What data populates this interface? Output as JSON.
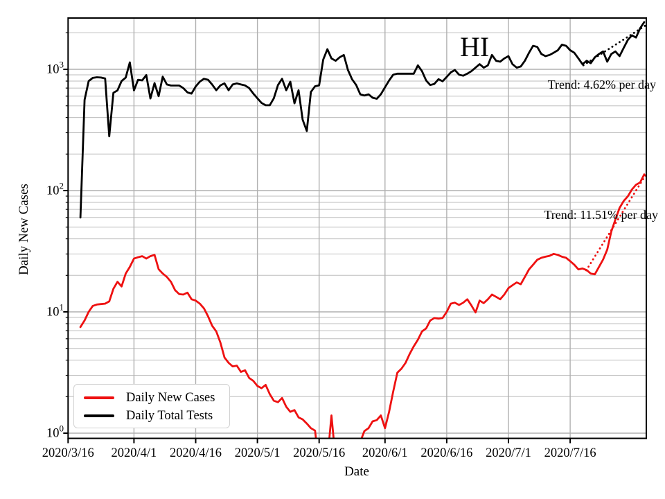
{
  "figure": {
    "background": "#ffffff",
    "grid_color": "#b0b0b0",
    "spine_color": "#000000"
  },
  "chart_data": {
    "type": "line",
    "yscale": "log",
    "title": "HI",
    "xlabel": "Date",
    "ylabel": "Daily New Cases",
    "x_tick_labels": [
      "2020/3/16",
      "2020/4/1",
      "2020/4/16",
      "2020/5/1",
      "2020/5/16",
      "2020/6/1",
      "2020/6/16",
      "2020/7/1",
      "2020/7/16"
    ],
    "x_tick_days": [
      0,
      16,
      31,
      46,
      61,
      77,
      92,
      107,
      122
    ],
    "y_tick_exponents": [
      0,
      1,
      2,
      3
    ],
    "ylim": [
      0.9,
      2650
    ],
    "xlim_days": [
      0,
      140.5
    ],
    "grid": "both",
    "legend_position": "lower-left",
    "start_date": "2020/3/19",
    "start_day_offset": 3,
    "series": [
      {
        "name": "Daily New Cases",
        "color": "#ee1111",
        "values": [
          7.5,
          8.5,
          10,
          11.2,
          11.5,
          11.6,
          11.7,
          12.2,
          15.5,
          17.7,
          16.2,
          20.7,
          23.5,
          27.5,
          28.2,
          28.8,
          27.5,
          28.8,
          29.5,
          22.5,
          20.7,
          19.4,
          17.7,
          15.1,
          14,
          13.9,
          14.4,
          12.7,
          12.4,
          11.7,
          10.7,
          9.2,
          7.7,
          6.9,
          5.6,
          4.2,
          3.8,
          3.55,
          3.6,
          3.2,
          3.3,
          2.85,
          2.7,
          2.45,
          2.35,
          2.5,
          2.1,
          1.85,
          1.8,
          1.95,
          1.65,
          1.5,
          1.55,
          1.35,
          1.3,
          1.2,
          1.1,
          1.05,
          0.55,
          0.5,
          0.6,
          1.4,
          0.6,
          0.5,
          0.5,
          0.55,
          0.6,
          0.7,
          0.85,
          1.04,
          1.1,
          1.25,
          1.28,
          1.4,
          1.1,
          1.5,
          2.2,
          3.15,
          3.4,
          3.8,
          4.5,
          5.2,
          5.9,
          6.9,
          7.3,
          8.5,
          8.9,
          8.8,
          8.9,
          10,
          11.7,
          11.9,
          11.4,
          11.9,
          12.7,
          11.3,
          9.9,
          12.4,
          11.8,
          12.7,
          13.9,
          13.3,
          12.7,
          13.9,
          15.7,
          16.6,
          17.5,
          16.9,
          19.4,
          22.4,
          24.5,
          26.9,
          27.9,
          28.5,
          29,
          30.1,
          29.5,
          28.5,
          27.9,
          26.2,
          24.5,
          22.4,
          22.8,
          22.1,
          20.7,
          20.4,
          23.5,
          27,
          32.6,
          46,
          57.8,
          72,
          82,
          89.6,
          102,
          111.7,
          116.7,
          136
        ]
      },
      {
        "name": "Daily Total Tests",
        "color": "#000000",
        "values": [
          60,
          560,
          800,
          850,
          860,
          855,
          840,
          280,
          640,
          670,
          800,
          855,
          1140,
          670,
          820,
          810,
          895,
          575,
          770,
          600,
          870,
          750,
          735,
          735,
          735,
          700,
          645,
          630,
          722,
          790,
          835,
          820,
          750,
          672,
          736,
          766,
          672,
          750,
          766,
          750,
          736,
          700,
          632,
          577,
          528,
          505,
          505,
          577,
          742,
          835,
          672,
          790,
          524,
          672,
          384,
          310,
          650,
          724,
          738,
          1202,
          1464,
          1229,
          1176,
          1256,
          1313,
          987,
          828,
          742,
          622,
          608,
          622,
          583,
          572,
          622,
          711,
          808,
          903,
          921,
          921,
          921,
          921,
          921,
          1078,
          965,
          808,
          742,
          758,
          828,
          796,
          865,
          944,
          987,
          903,
          886,
          921,
          965,
          1032,
          1102,
          1032,
          1078,
          1313,
          1176,
          1155,
          1229,
          1284,
          1101,
          1032,
          1055,
          1176,
          1370,
          1562,
          1529,
          1338,
          1284,
          1313,
          1370,
          1436,
          1596,
          1562,
          1436,
          1370,
          1229,
          1101,
          1176,
          1123,
          1256,
          1338,
          1404,
          1155,
          1338,
          1404,
          1284,
          1498,
          1745,
          1907,
          1828,
          2180,
          2450
        ]
      }
    ],
    "trend_lines": [
      {
        "name": "tests-trend",
        "series": "Daily Total Tests",
        "color": "#000000",
        "label": "Trend: 4.62% per day",
        "rate_percent_per_day": 4.62,
        "day_span": [
          125.2,
          140.6
        ],
        "value_span": [
          1080,
          2330
        ]
      },
      {
        "name": "cases-trend",
        "series": "Daily New Cases",
        "color": "#ee1111",
        "label": "Trend: 11.51% per day",
        "rate_percent_per_day": 11.51,
        "day_span": [
          125.9,
          140.8
        ],
        "value_span": [
          22,
          142
        ]
      }
    ]
  },
  "legend": {
    "items": [
      {
        "label": "Daily New Cases",
        "color": "#ee1111"
      },
      {
        "label": "Daily Total Tests",
        "color": "#000000"
      }
    ]
  }
}
